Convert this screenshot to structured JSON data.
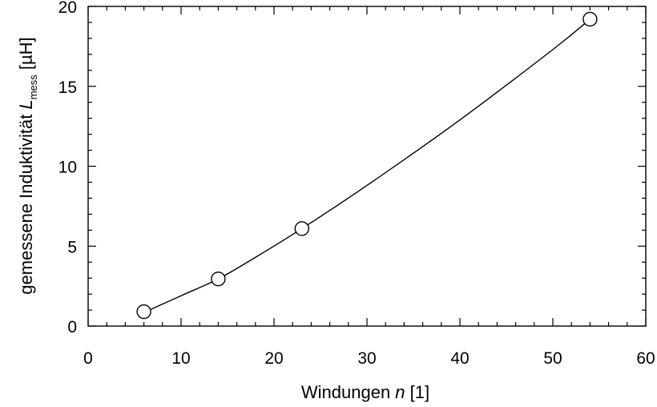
{
  "chart_data": {
    "type": "scatter",
    "xlim": [
      0,
      60
    ],
    "ylim": [
      0,
      20
    ],
    "x_ticks": [
      "0",
      "10",
      "20",
      "30",
      "40",
      "50",
      "60"
    ],
    "y_ticks": [
      "0",
      "5",
      "10",
      "15",
      "20"
    ],
    "xlabel": {
      "text": "Windungen ",
      "var": "n",
      "unit": " [1]"
    },
    "ylabel": {
      "text": "gemessene Induktivität ",
      "var": "L",
      "sub": "mess",
      "unit": " [µH]"
    },
    "grid": false,
    "legend": false,
    "series": [
      {
        "marker": "open-circle",
        "x": [
          6,
          14,
          23,
          54
        ],
        "y": [
          0.9,
          2.95,
          6.1,
          19.2
        ]
      }
    ],
    "fit_curve": {
      "style": "line",
      "x": [
        6,
        10,
        14,
        18,
        23,
        30,
        40,
        50,
        54
      ],
      "y": [
        0.85,
        1.9,
        2.95,
        4.3,
        6.1,
        8.8,
        12.9,
        17.3,
        19.2
      ]
    },
    "colors": {
      "axis": "#000000",
      "marker": "#000000",
      "line": "#000000"
    }
  }
}
